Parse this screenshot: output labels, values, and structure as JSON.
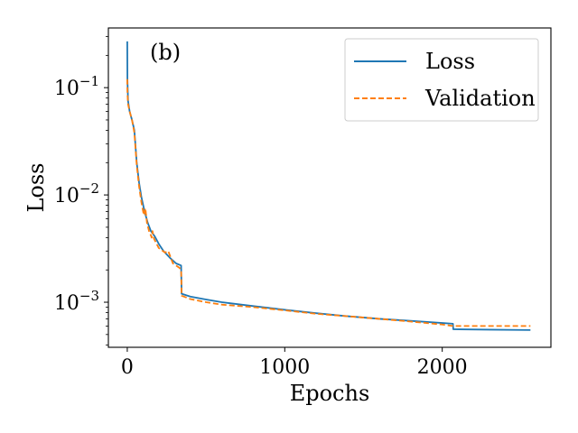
{
  "chart_data": {
    "type": "line",
    "panel_label": "(b)",
    "xlabel": "Epochs",
    "ylabel": "Loss",
    "yscale": "log",
    "xlim": [
      -120,
      2690
    ],
    "ylim": [
      0.00038,
      0.36
    ],
    "x_ticks": [
      {
        "value": 0,
        "label": "0"
      },
      {
        "value": 1000,
        "label": "1000"
      },
      {
        "value": 2000,
        "label": "2000"
      }
    ],
    "y_ticks": [
      {
        "value": 0.1,
        "base": "10",
        "exp": "−1"
      },
      {
        "value": 0.01,
        "base": "10",
        "exp": "−2"
      },
      {
        "value": 0.001,
        "base": "10",
        "exp": "−3"
      }
    ],
    "legend_position": "top-right",
    "series": [
      {
        "name": "Loss",
        "color": "#1f77b4",
        "dash": "solid",
        "points": [
          [
            0,
            0.27
          ],
          [
            1,
            0.12
          ],
          [
            5,
            0.075
          ],
          [
            15,
            0.06
          ],
          [
            30,
            0.05
          ],
          [
            45,
            0.04
          ],
          [
            60,
            0.02
          ],
          [
            75,
            0.013
          ],
          [
            90,
            0.0095
          ],
          [
            110,
            0.007
          ],
          [
            130,
            0.0055
          ],
          [
            150,
            0.0046
          ],
          [
            175,
            0.0041
          ],
          [
            200,
            0.0035
          ],
          [
            230,
            0.003
          ],
          [
            270,
            0.0026
          ],
          [
            310,
            0.0023
          ],
          [
            342,
            0.0022
          ],
          [
            345,
            0.0012
          ],
          [
            400,
            0.00113
          ],
          [
            500,
            0.00106
          ],
          [
            600,
            0.001
          ],
          [
            800,
            0.00092
          ],
          [
            1000,
            0.00085
          ],
          [
            1200,
            0.00079
          ],
          [
            1400,
            0.00074
          ],
          [
            1600,
            0.0007
          ],
          [
            1800,
            0.00067
          ],
          [
            2000,
            0.00064
          ],
          [
            2068,
            0.00063
          ],
          [
            2070,
            0.00056
          ],
          [
            2300,
            0.000555
          ],
          [
            2560,
            0.00055
          ]
        ]
      },
      {
        "name": "Validation",
        "color": "#ff7f0e",
        "dash": "dashed",
        "points": [
          [
            0,
            0.12
          ],
          [
            1,
            0.09
          ],
          [
            5,
            0.07
          ],
          [
            15,
            0.06
          ],
          [
            30,
            0.05
          ],
          [
            45,
            0.038
          ],
          [
            60,
            0.019
          ],
          [
            75,
            0.012
          ],
          [
            90,
            0.0085
          ],
          [
            105,
            0.0065
          ],
          [
            115,
            0.0075
          ],
          [
            125,
            0.0055
          ],
          [
            140,
            0.0045
          ],
          [
            150,
            0.0042
          ],
          [
            155,
            0.004
          ],
          [
            160,
            0.0046
          ],
          [
            170,
            0.0039
          ],
          [
            200,
            0.0032
          ],
          [
            240,
            0.0029
          ],
          [
            260,
            0.003
          ],
          [
            290,
            0.0023
          ],
          [
            330,
            0.0021
          ],
          [
            342,
            0.002
          ],
          [
            345,
            0.00115
          ],
          [
            400,
            0.00107
          ],
          [
            500,
            0.001
          ],
          [
            600,
            0.00095
          ],
          [
            800,
            0.0009
          ],
          [
            1000,
            0.00084
          ],
          [
            1200,
            0.00078
          ],
          [
            1400,
            0.00074
          ],
          [
            1600,
            0.0007
          ],
          [
            1800,
            0.00066
          ],
          [
            2000,
            0.00062
          ],
          [
            2068,
            0.0006
          ],
          [
            2070,
            0.0006
          ],
          [
            2300,
            0.0006
          ],
          [
            2560,
            0.0006
          ]
        ]
      }
    ]
  }
}
